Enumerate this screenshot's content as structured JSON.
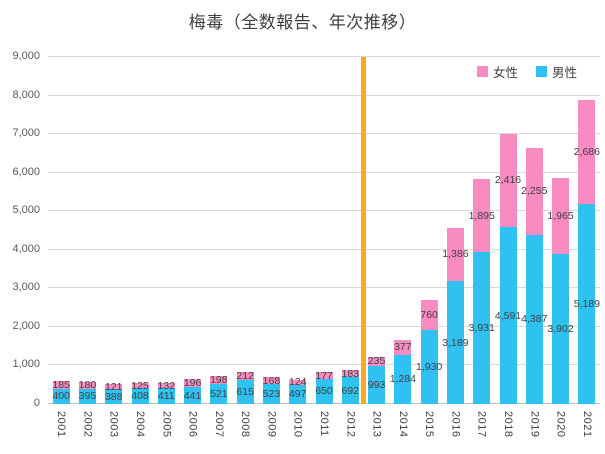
{
  "chart_data": {
    "type": "bar",
    "stacked": true,
    "title": "梅毒（全数報告、年次推移）",
    "categories": [
      "2001",
      "2002",
      "2003",
      "2004",
      "2005",
      "2006",
      "2007",
      "2008",
      "2009",
      "2010",
      "2011",
      "2012",
      "2013",
      "2014",
      "2015",
      "2016",
      "2017",
      "2018",
      "2019",
      "2020",
      "2021"
    ],
    "series": [
      {
        "name": "男性",
        "color": "#2FC1F0",
        "values": [
          400,
          395,
          388,
          408,
          411,
          441,
          521,
          615,
          523,
          497,
          650,
          692,
          993,
          1284,
          1930,
          3189,
          3931,
          4591,
          4387,
          3902,
          5189
        ],
        "labels": [
          "400",
          "395",
          "388",
          "408",
          "411",
          "441",
          "521",
          "615",
          "523",
          "497",
          "650",
          "692",
          "993",
          "1,284",
          "1,930",
          "3,189",
          "3,931",
          "4,591",
          "4,387",
          "3,902",
          "5,189"
        ]
      },
      {
        "name": "女性",
        "color": "#F78BC2",
        "values": [
          185,
          180,
          121,
          125,
          132,
          196,
          198,
          212,
          168,
          124,
          177,
          183,
          235,
          377,
          760,
          1386,
          1895,
          2416,
          2255,
          1965,
          2686
        ],
        "labels": [
          "185",
          "180",
          "121",
          "125",
          "132",
          "196",
          "198",
          "212",
          "168",
          "124",
          "177",
          "183",
          "235",
          "377",
          "760",
          "1,386",
          "1,895",
          "2,416",
          "2,255",
          "1,965",
          "2,686"
        ]
      }
    ],
    "legend": [
      {
        "label": "女性",
        "color": "#F78BC2"
      },
      {
        "label": "男性",
        "color": "#2FC1F0"
      }
    ],
    "legend_position": "top-right",
    "xlabel": "",
    "ylabel": "",
    "ylim": [
      0,
      9000
    ],
    "yticks": [
      {
        "label": "0",
        "value": 0
      },
      {
        "label": "1,000",
        "value": 1000
      },
      {
        "label": "2,000",
        "value": 2000
      },
      {
        "label": "3,000",
        "value": 3000
      },
      {
        "label": "4,000",
        "value": 4000
      },
      {
        "label": "5,000",
        "value": 5000
      },
      {
        "label": "6,000",
        "value": 6000
      },
      {
        "label": "7,000",
        "value": 7000
      },
      {
        "label": "8,000",
        "value": 8000
      },
      {
        "label": "9,000",
        "value": 9000
      }
    ],
    "grid": true,
    "label_color": "#404040",
    "annotation_vline": {
      "after_category": "2012",
      "color": "#FBAB1E"
    }
  }
}
